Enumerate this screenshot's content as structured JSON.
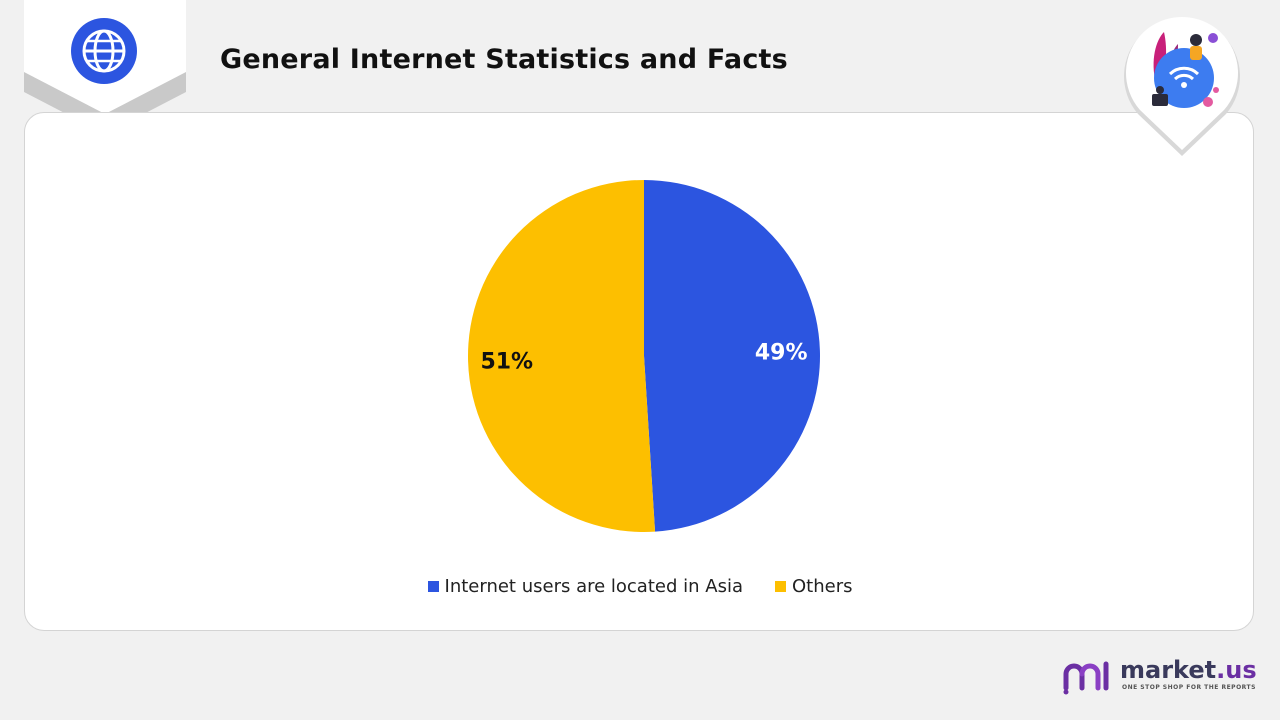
{
  "header": {
    "title": "General Internet Statistics and Facts"
  },
  "icons": {
    "badge": "globe-icon",
    "illustration": "wifi-globe-illustration"
  },
  "chart_data": {
    "type": "pie",
    "categories": [
      "Internet users are located in Asia",
      "Others"
    ],
    "values": [
      49,
      51
    ],
    "labels": [
      "49%",
      "51%"
    ],
    "colors": [
      "#2c55e0",
      "#fdbf00"
    ],
    "label_colors": [
      "#ffffff",
      "#111111"
    ],
    "legend_position": "bottom"
  },
  "brand": {
    "name_prefix": "market",
    "name_suffix": ".us",
    "tagline": "ONE STOP SHOP FOR THE REPORTS",
    "accent": "#6b2fa3"
  }
}
